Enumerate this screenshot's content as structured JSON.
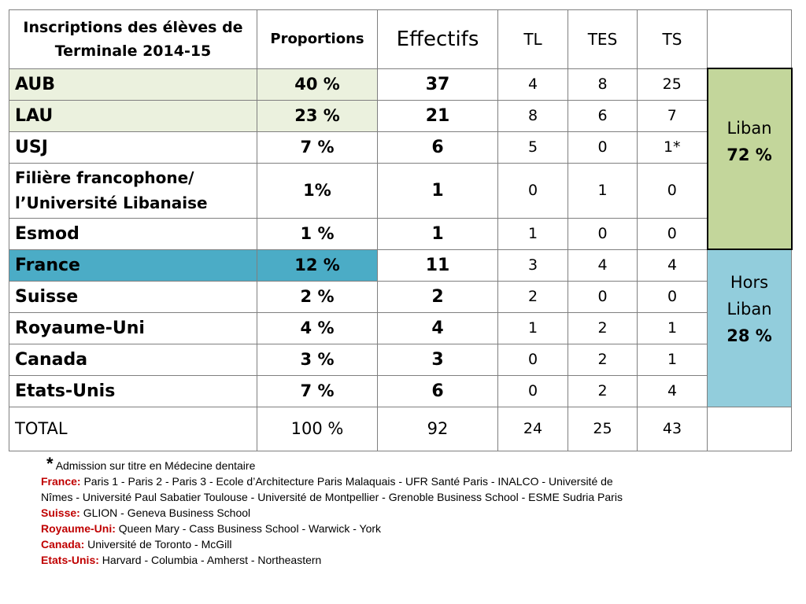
{
  "table": {
    "title_line1": "Inscriptions des élèves  de",
    "title_line2": "Terminale 2014-15",
    "headers": {
      "proportions": "Proportions",
      "effectifs": "Effectifs",
      "tl": "TL",
      "tes": "TES",
      "ts": "TS"
    },
    "rows": [
      {
        "name": "AUB",
        "pct": "40 %",
        "eff": "37",
        "tl": "4",
        "tes": "8",
        "ts": "25"
      },
      {
        "name": "LAU",
        "pct": "23 %",
        "eff": "21",
        "tl": "8",
        "tes": "6",
        "ts": "7"
      },
      {
        "name": "USJ",
        "pct": "7 %",
        "eff": "6",
        "tl": "5",
        "tes": "0",
        "ts": "1*"
      },
      {
        "name_line1": "Filière francophone/",
        "name_line2": "l’Université Libanaise",
        "pct": "1%",
        "eff": "1",
        "tl": "0",
        "tes": "1",
        "ts": "0"
      },
      {
        "name": "Esmod",
        "pct": "1 %",
        "eff": "1",
        "tl": "1",
        "tes": "0",
        "ts": "0"
      },
      {
        "name": "France",
        "pct": "12 %",
        "eff": "11",
        "tl": "3",
        "tes": "4",
        "ts": "4"
      },
      {
        "name": "Suisse",
        "pct": "2 %",
        "eff": "2",
        "tl": "2",
        "tes": "0",
        "ts": "0"
      },
      {
        "name": "Royaume-Uni",
        "pct": "4 %",
        "eff": "4",
        "tl": "1",
        "tes": "2",
        "ts": "1"
      },
      {
        "name": "Canada",
        "pct": "3 %",
        "eff": "3",
        "tl": "0",
        "tes": "2",
        "ts": "1"
      },
      {
        "name": "Etats-Unis",
        "pct": "7 %",
        "eff": "6",
        "tl": "0",
        "tes": "2",
        "ts": "4"
      }
    ],
    "total": {
      "name": "TOTAL",
      "pct": "100 %",
      "eff": "92",
      "tl": "24",
      "tes": "25",
      "ts": "43"
    },
    "region_liban": {
      "label": "Liban",
      "pct": "72 %"
    },
    "region_hors": {
      "label_line1": "Hors",
      "label_line2": "Liban",
      "pct": "28 %"
    }
  },
  "notes": {
    "star": "*",
    "admission": "Admission sur titre en Médecine dentaire",
    "france_label": "France:",
    "france_text_1": "Paris 1 - Paris 2 - Paris 3 - Ecole d’Architecture Paris Malaquais - UFR Santé Paris - INALCO  - Université de",
    "france_text_2": "Nîmes - Université Paul Sabatier Toulouse - Université de Montpellier  - Grenoble Business School - ESME Sudria Paris",
    "suisse_label": "Suisse:",
    "suisse_text": "GLION - Geneva Business School",
    "royaume_label": "Royaume-Uni:",
    "royaume_text": "Queen Mary - Cass Business School - Warwick - York",
    "canada_label": "Canada:",
    "canada_text": "Université de Toronto - McGill",
    "etats_label": "Etats-Unis:",
    "etats_text": "Harvard - Columbia - Amherst - Northeastern"
  },
  "colors": {
    "title": "#c0504d",
    "green_light": "#ebf1de",
    "green_region": "#c3d69b",
    "blue_france": "#4bacc6",
    "blue_region": "#92cddc",
    "note_label": "#c00000"
  }
}
